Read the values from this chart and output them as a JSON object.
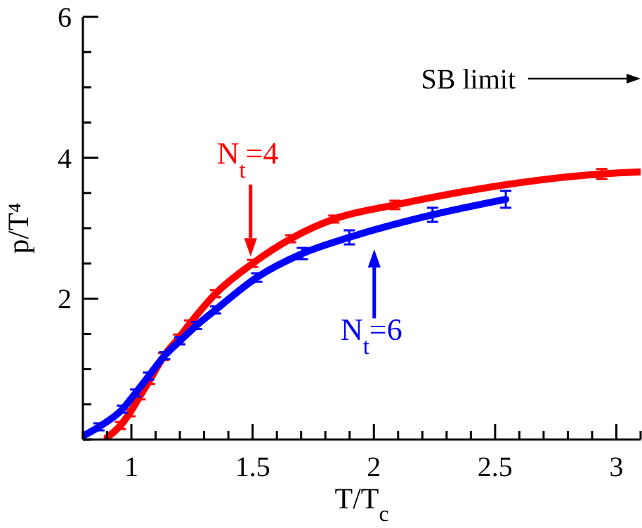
{
  "chart_data": {
    "type": "line",
    "xlabel": "T/T$_{c}$",
    "ylabel": "p/T⁴",
    "xlim": [
      0.8,
      3.1
    ],
    "ylim": [
      0,
      6
    ],
    "xticks": [
      {
        "value": 0.8,
        "label": null
      },
      {
        "value": 0.9,
        "label": null
      },
      1,
      {
        "value": 1.1,
        "label": null
      },
      {
        "value": 1.2,
        "label": null
      },
      {
        "value": 1.3,
        "label": null
      },
      {
        "value": 1.4,
        "label": null
      },
      1.5,
      {
        "value": 1.6,
        "label": null
      },
      {
        "value": 1.7,
        "label": null
      },
      {
        "value": 1.8,
        "label": null
      },
      {
        "value": 1.9,
        "label": null
      },
      2,
      {
        "value": 2.1,
        "label": null
      },
      {
        "value": 2.2,
        "label": null
      },
      {
        "value": 2.3,
        "label": null
      },
      {
        "value": 2.4,
        "label": null
      },
      2.5,
      {
        "value": 2.6,
        "label": null
      },
      {
        "value": 2.7,
        "label": null
      },
      {
        "value": 2.8,
        "label": null
      },
      {
        "value": 2.9,
        "label": null
      },
      3,
      {
        "value": 3.1,
        "label": null
      }
    ],
    "yticks": [
      {
        "value": 0,
        "label": null
      },
      {
        "value": 0.5,
        "label": null
      },
      {
        "value": 1,
        "label": null
      },
      {
        "value": 1.5,
        "label": null
      },
      2,
      {
        "value": 2.5,
        "label": null
      },
      {
        "value": 3,
        "label": null
      },
      {
        "value": 3.5,
        "label": null
      },
      4,
      {
        "value": 4.5,
        "label": null
      },
      {
        "value": 5,
        "label": null
      },
      {
        "value": 5.5,
        "label": null
      },
      6
    ],
    "marker": "none",
    "line_style": "solid",
    "annotations": [
      "SB limit"
    ],
    "series": [
      {
        "name": "N$_{t}$=4",
        "color": "#ff0000",
        "x": [
          0.9,
          0.955,
          0.994,
          1.036,
          1.075,
          1.133,
          1.195,
          1.24,
          1.347,
          1.5,
          1.657,
          1.835,
          2.087,
          2.94,
          3.1
        ],
        "values": [
          0.03,
          0.2,
          0.38,
          0.62,
          0.84,
          1.18,
          1.44,
          1.64,
          2.07,
          2.5,
          2.85,
          3.13,
          3.33,
          3.77,
          3.8
        ],
        "errors": [
          null,
          0.05,
          0.05,
          0.05,
          0.05,
          0.05,
          0.05,
          0.05,
          0.05,
          0.05,
          0.05,
          0.05,
          0.06,
          0.07,
          null
        ]
      },
      {
        "name": "N$_{t}$=6",
        "color": "#0000ff",
        "x": [
          0.8,
          0.866,
          0.963,
          1.017,
          1.071,
          1.137,
          1.2,
          1.269,
          1.347,
          1.517,
          1.705,
          1.899,
          2.242,
          2.544
        ],
        "values": [
          0.05,
          0.18,
          0.43,
          0.66,
          0.9,
          1.19,
          1.4,
          1.62,
          1.84,
          2.3,
          2.64,
          2.87,
          3.19,
          3.41
        ],
        "errors": [
          null,
          0.05,
          0.05,
          0.05,
          0.05,
          0.05,
          0.05,
          0.05,
          0.05,
          0.06,
          0.08,
          0.1,
          0.1,
          0.12
        ]
      }
    ]
  }
}
